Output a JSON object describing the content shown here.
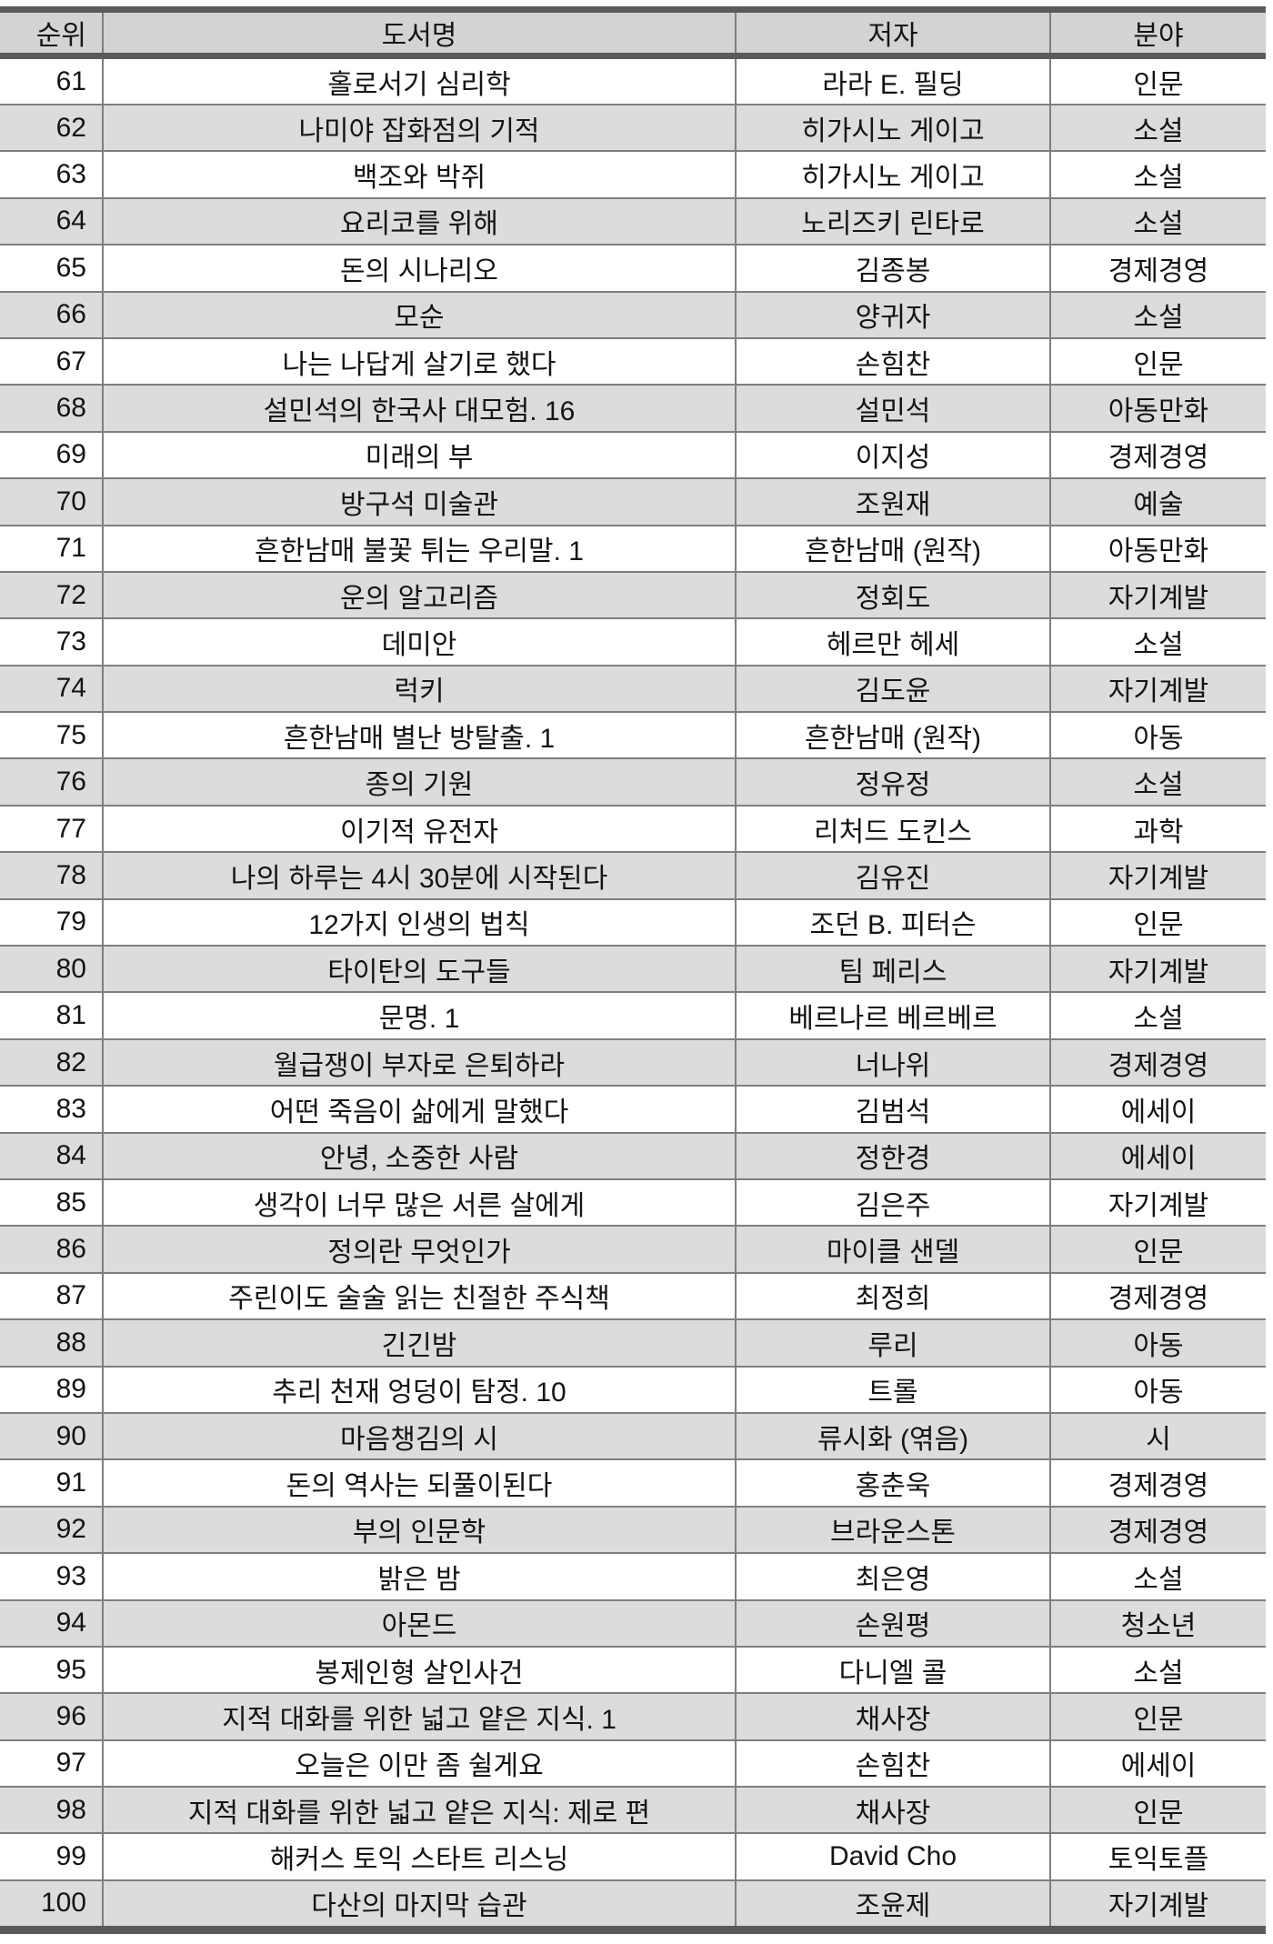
{
  "table": {
    "columns": [
      "순위",
      "도서명",
      "저자",
      "분야"
    ],
    "rows": [
      {
        "rank": "61",
        "title": "홀로서기 심리학",
        "author": "라라 E. 필딩",
        "category": "인문"
      },
      {
        "rank": "62",
        "title": "나미야 잡화점의 기적",
        "author": "히가시노 게이고",
        "category": "소설"
      },
      {
        "rank": "63",
        "title": "백조와 박쥐",
        "author": "히가시노 게이고",
        "category": "소설"
      },
      {
        "rank": "64",
        "title": "요리코를 위해",
        "author": "노리즈키 린타로",
        "category": "소설"
      },
      {
        "rank": "65",
        "title": "돈의 시나리오",
        "author": "김종봉",
        "category": "경제경영"
      },
      {
        "rank": "66",
        "title": "모순",
        "author": "양귀자",
        "category": "소설"
      },
      {
        "rank": "67",
        "title": "나는 나답게 살기로 했다",
        "author": "손힘찬",
        "category": "인문"
      },
      {
        "rank": "68",
        "title": "설민석의 한국사 대모험. 16",
        "author": "설민석",
        "category": "아동만화"
      },
      {
        "rank": "69",
        "title": "미래의 부",
        "author": "이지성",
        "category": "경제경영"
      },
      {
        "rank": "70",
        "title": "방구석 미술관",
        "author": "조원재",
        "category": "예술"
      },
      {
        "rank": "71",
        "title": "흔한남매 불꽃 튀는 우리말. 1",
        "author": "흔한남매 (원작)",
        "category": "아동만화"
      },
      {
        "rank": "72",
        "title": "운의 알고리즘",
        "author": "정회도",
        "category": "자기계발"
      },
      {
        "rank": "73",
        "title": "데미안",
        "author": "헤르만 헤세",
        "category": "소설"
      },
      {
        "rank": "74",
        "title": "럭키",
        "author": "김도윤",
        "category": "자기계발"
      },
      {
        "rank": "75",
        "title": "흔한남매 별난 방탈출. 1",
        "author": "흔한남매 (원작)",
        "category": "아동"
      },
      {
        "rank": "76",
        "title": "종의 기원",
        "author": "정유정",
        "category": "소설"
      },
      {
        "rank": "77",
        "title": "이기적 유전자",
        "author": "리처드 도킨스",
        "category": "과학"
      },
      {
        "rank": "78",
        "title": "나의 하루는 4시 30분에 시작된다",
        "author": "김유진",
        "category": "자기계발"
      },
      {
        "rank": "79",
        "title": "12가지 인생의 법칙",
        "author": "조던 B. 피터슨",
        "category": "인문"
      },
      {
        "rank": "80",
        "title": "타이탄의 도구들",
        "author": "팀 페리스",
        "category": "자기계발"
      },
      {
        "rank": "81",
        "title": "문명. 1",
        "author": "베르나르 베르베르",
        "category": "소설"
      },
      {
        "rank": "82",
        "title": "월급쟁이 부자로 은퇴하라",
        "author": "너나위",
        "category": "경제경영"
      },
      {
        "rank": "83",
        "title": "어떤 죽음이 삶에게 말했다",
        "author": "김범석",
        "category": "에세이"
      },
      {
        "rank": "84",
        "title": "안녕, 소중한 사람",
        "author": "정한경",
        "category": "에세이"
      },
      {
        "rank": "85",
        "title": "생각이 너무 많은 서른 살에게",
        "author": "김은주",
        "category": "자기계발"
      },
      {
        "rank": "86",
        "title": "정의란 무엇인가",
        "author": "마이클 샌델",
        "category": "인문"
      },
      {
        "rank": "87",
        "title": "주린이도 술술 읽는 친절한 주식책",
        "author": "최정희",
        "category": "경제경영"
      },
      {
        "rank": "88",
        "title": "긴긴밤",
        "author": "루리",
        "category": "아동"
      },
      {
        "rank": "89",
        "title": "추리 천재 엉덩이 탐정. 10",
        "author": "트롤",
        "category": "아동"
      },
      {
        "rank": "90",
        "title": "마음챙김의 시",
        "author": "류시화 (엮음)",
        "category": "시"
      },
      {
        "rank": "91",
        "title": "돈의 역사는 되풀이된다",
        "author": "홍춘욱",
        "category": "경제경영"
      },
      {
        "rank": "92",
        "title": "부의 인문학",
        "author": "브라운스톤",
        "category": "경제경영"
      },
      {
        "rank": "93",
        "title": "밝은 밤",
        "author": "최은영",
        "category": "소설"
      },
      {
        "rank": "94",
        "title": "아몬드",
        "author": "손원평",
        "category": "청소년"
      },
      {
        "rank": "95",
        "title": "봉제인형 살인사건",
        "author": "다니엘 콜",
        "category": "소설"
      },
      {
        "rank": "96",
        "title": "지적 대화를 위한 넓고 얕은 지식. 1",
        "author": "채사장",
        "category": "인문"
      },
      {
        "rank": "97",
        "title": "오늘은 이만 좀 쉴게요",
        "author": "손힘찬",
        "category": "에세이"
      },
      {
        "rank": "98",
        "title": "지적 대화를 위한 넓고 얕은 지식: 제로 편",
        "author": "채사장",
        "category": "인문"
      },
      {
        "rank": "99",
        "title": "해커스 토익 스타트 리스닝",
        "author": "David Cho",
        "category": "토익토플"
      },
      {
        "rank": "100",
        "title": "다산의 마지막 습관",
        "author": "조윤제",
        "category": "자기계발"
      }
    ]
  },
  "colors": {
    "header_bg": "#d3d3d3",
    "stripe_bg": "#dcdcdc",
    "thick_border": "#5a5a5a",
    "thin_border": "#7f7f7f",
    "text": "#141414",
    "row_bg": "#ffffff"
  }
}
